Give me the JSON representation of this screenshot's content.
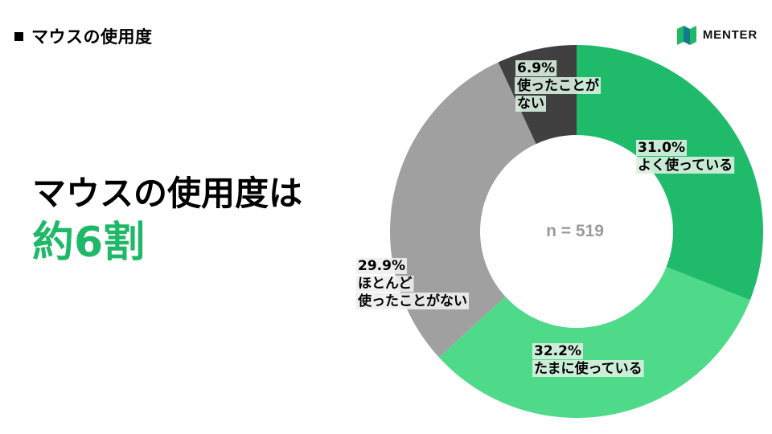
{
  "slide": {
    "title": "マウスの使用度",
    "headline_line1": "マウスの使用度は",
    "headline_line2": "約6割"
  },
  "logo": {
    "text": "MENTER",
    "icon": "menter-logo-icon"
  },
  "colors": {
    "accent": "#1fb868",
    "segment_often": "#1fbb6b",
    "segment_sometimes": "#4fda8a",
    "segment_rarely": "#a0a0a0",
    "segment_never": "#404040",
    "label_bg": "#d9efe0",
    "label_bg_gray": "#eeeeee"
  },
  "chart_data": {
    "type": "pie",
    "donut": true,
    "center_label": "n = 519",
    "slices": [
      {
        "label": "よく使っている",
        "value": 31.0,
        "display": "31.0%",
        "lines": [
          "31.0%",
          "よく使っている"
        ],
        "color": "#1fbb6b"
      },
      {
        "label": "たまに使っている",
        "value": 32.2,
        "display": "32.2%",
        "lines": [
          "32.2%",
          "たまに使っている"
        ],
        "color": "#4fda8a"
      },
      {
        "label": "ほとんど使ったことがない",
        "value": 29.9,
        "display": "29.9%",
        "lines": [
          "29.9%",
          "ほとんど",
          "使ったことがない"
        ],
        "color": "#a0a0a0"
      },
      {
        "label": "使ったことがない",
        "value": 6.9,
        "display": "6.9%",
        "lines": [
          "6.9%",
          "使ったことが",
          "ない"
        ],
        "color": "#404040"
      }
    ]
  }
}
